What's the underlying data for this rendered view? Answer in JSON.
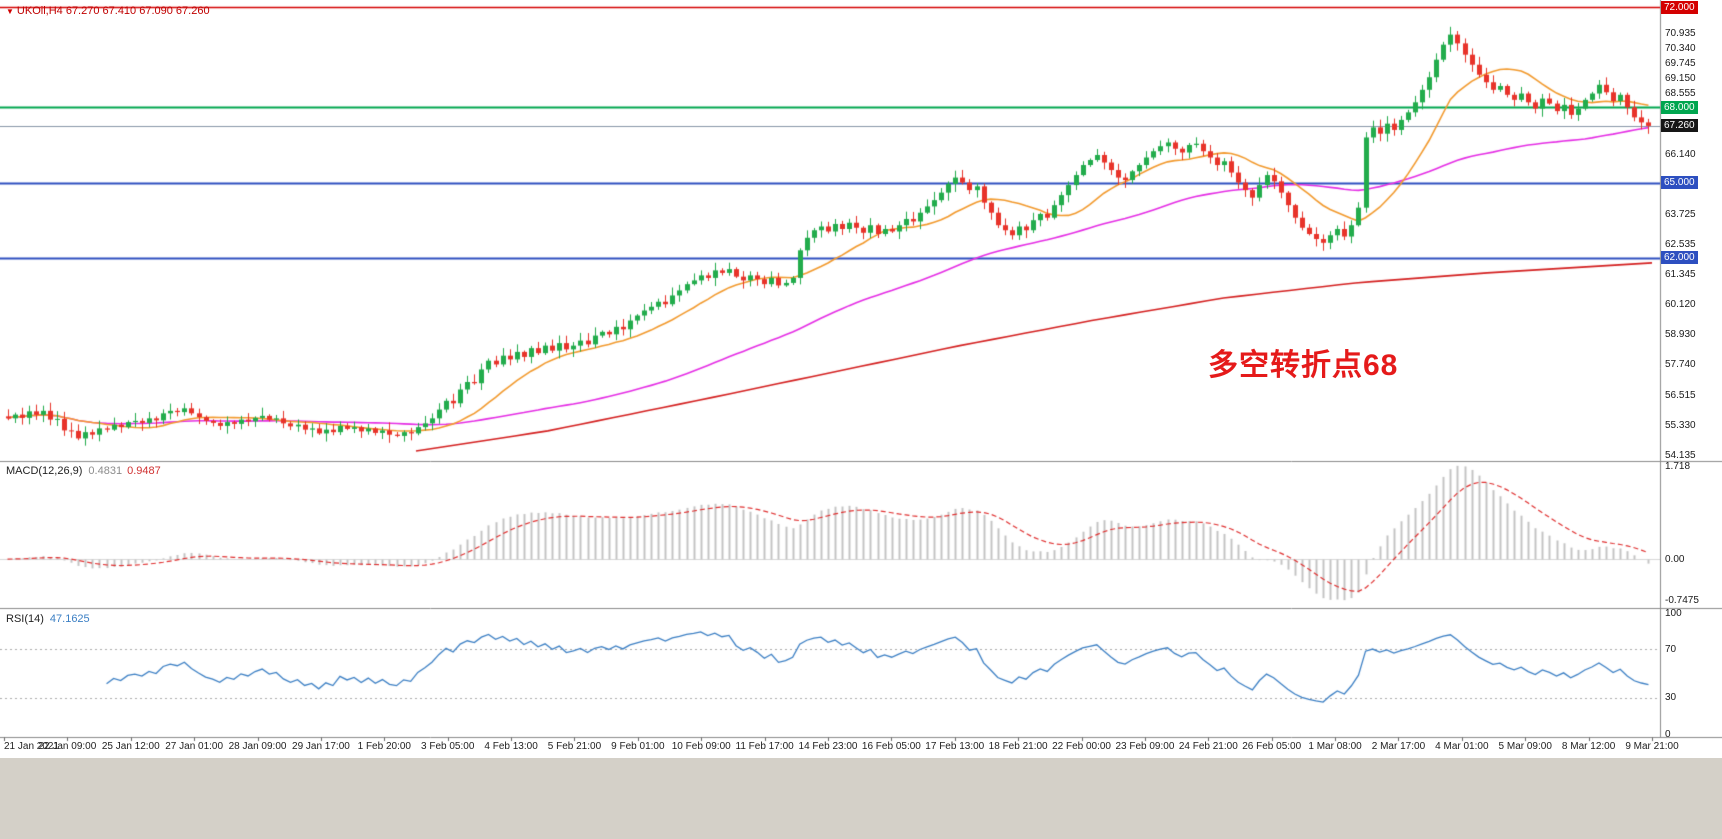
{
  "main_chart": {
    "marker": "▼",
    "title": "UKOil,H4 67.270 67.410 67.090 67.260",
    "annotation": "多空转折点68",
    "current_price": "67.260",
    "hlines": [
      {
        "price": 72.0,
        "color": "#d40000",
        "width": 1.5
      },
      {
        "price": 68.0,
        "color": "#00a64f",
        "width": 2
      },
      {
        "price": 67.26,
        "color": "#8896a8",
        "width": 1
      },
      {
        "price": 65.0,
        "color": "#2d4fc0",
        "width": 2
      },
      {
        "price": 62.0,
        "color": "#2d4fc0",
        "width": 2
      }
    ],
    "price_scale": [
      {
        "text": "72.000",
        "price": 72.0,
        "bg": "#d40000"
      },
      {
        "text": "70.935",
        "price": 70.935
      },
      {
        "text": "70.340",
        "price": 70.34
      },
      {
        "text": "69.745",
        "price": 69.745
      },
      {
        "text": "69.150",
        "price": 69.15
      },
      {
        "text": "68.555",
        "price": 68.555
      },
      {
        "text": "68.000",
        "price": 68.0,
        "bg": "#00a64f"
      },
      {
        "text": "67.260",
        "price": 67.26,
        "bg": "#161616"
      },
      {
        "text": "66.140",
        "price": 66.14
      },
      {
        "text": "65.000",
        "price": 65.0,
        "bg": "#2d4fc0"
      },
      {
        "text": "63.725",
        "price": 63.725
      },
      {
        "text": "62.535",
        "price": 62.535
      },
      {
        "text": "62.000",
        "price": 62.0,
        "bg": "#2d4fc0"
      },
      {
        "text": "61.345",
        "price": 61.345
      },
      {
        "text": "60.120",
        "price": 60.12
      },
      {
        "text": "58.930",
        "price": 58.93
      },
      {
        "text": "57.740",
        "price": 57.74
      },
      {
        "text": "56.515",
        "price": 56.515
      },
      {
        "text": "55.330",
        "price": 55.33
      },
      {
        "text": "54.135",
        "price": 54.135
      }
    ]
  },
  "macd": {
    "label": "MACD(12,26,9)",
    "value_main": "0.4831",
    "value_signal": "0.9487",
    "scale": {
      "top": "1.718",
      "zero": "0.00",
      "bottom": "-0.7475"
    }
  },
  "rsi": {
    "label": "RSI(14)",
    "value": "47.1625",
    "scale": [
      {
        "text": "100",
        "value": 100
      },
      {
        "text": "70",
        "value": 70
      },
      {
        "text": "30",
        "value": 30
      },
      {
        "text": "0",
        "value": 0
      }
    ],
    "levels": [
      70,
      30
    ]
  },
  "chart_data": {
    "type": "candlestick",
    "symbol": "UKOil",
    "timeframe": "H4",
    "ohlc_last": {
      "open": 67.27,
      "high": 67.41,
      "low": 67.09,
      "close": 67.26
    },
    "price_range": [
      54.135,
      72.0
    ],
    "x_labels": [
      "21 Jan 2021",
      "22 Jan 09:00",
      "25 Jan 12:00",
      "27 Jan 01:00",
      "28 Jan 09:00",
      "29 Jan 17:00",
      "1 Feb 20:00",
      "3 Feb 05:00",
      "4 Feb 13:00",
      "5 Feb 21:00",
      "9 Feb 01:00",
      "10 Feb 09:00",
      "11 Feb 17:00",
      "14 Feb 23:00",
      "16 Feb 05:00",
      "17 Feb 13:00",
      "18 Feb 21:00",
      "22 Feb 00:00",
      "23 Feb 09:00",
      "24 Feb 21:00",
      "26 Feb 05:00",
      "1 Mar 08:00",
      "2 Mar 17:00",
      "4 Mar 01:00",
      "5 Mar 09:00",
      "8 Mar 12:00",
      "9 Mar 21:00"
    ],
    "closes": [
      55.6,
      55.75,
      55.62,
      55.88,
      55.74,
      55.9,
      55.55,
      55.58,
      55.12,
      55.1,
      54.8,
      55.05,
      54.95,
      55.2,
      55.15,
      55.35,
      55.25,
      55.45,
      55.5,
      55.42,
      55.6,
      55.52,
      55.8,
      55.9,
      55.85,
      56.0,
      55.8,
      55.65,
      55.5,
      55.42,
      55.3,
      55.45,
      55.38,
      55.55,
      55.48,
      55.62,
      55.7,
      55.55,
      55.6,
      55.4,
      55.28,
      55.35,
      55.15,
      55.2,
      55.0,
      55.15,
      55.05,
      55.3,
      55.18,
      55.25,
      55.08,
      55.2,
      55.02,
      55.12,
      54.95,
      54.9,
      55.05,
      55.0,
      55.25,
      55.4,
      55.6,
      55.95,
      56.3,
      56.2,
      56.75,
      57.05,
      57.0,
      57.55,
      57.9,
      57.75,
      58.1,
      57.95,
      58.25,
      58.05,
      58.4,
      58.2,
      58.5,
      58.3,
      58.6,
      58.35,
      58.5,
      58.7,
      58.55,
      58.9,
      59.05,
      58.95,
      59.25,
      59.15,
      59.5,
      59.7,
      59.9,
      60.05,
      60.25,
      60.15,
      60.5,
      60.7,
      60.95,
      61.1,
      61.3,
      61.2,
      61.5,
      61.4,
      61.55,
      61.25,
      61.1,
      61.3,
      61.15,
      60.95,
      61.2,
      60.9,
      61.0,
      61.2,
      62.3,
      62.8,
      63.1,
      63.25,
      63.05,
      63.35,
      63.15,
      63.4,
      63.2,
      63.0,
      63.3,
      62.95,
      63.15,
      63.05,
      63.3,
      63.55,
      63.45,
      63.8,
      64.05,
      64.3,
      64.6,
      64.95,
      65.2,
      65.0,
      64.7,
      64.85,
      64.2,
      63.8,
      63.3,
      63.1,
      62.9,
      63.25,
      63.1,
      63.5,
      63.75,
      63.6,
      64.1,
      64.5,
      64.9,
      65.3,
      65.7,
      65.9,
      66.1,
      65.8,
      65.5,
      65.2,
      65.1,
      65.45,
      65.7,
      66.0,
      66.25,
      66.45,
      66.6,
      66.35,
      66.2,
      66.5,
      66.55,
      66.25,
      66.0,
      65.7,
      65.85,
      65.4,
      65.0,
      64.7,
      64.4,
      64.9,
      65.3,
      65.05,
      64.6,
      64.1,
      63.6,
      63.2,
      62.95,
      62.75,
      62.6,
      62.9,
      63.15,
      62.85,
      63.3,
      64.0,
      66.8,
      67.2,
      66.95,
      67.35,
      67.1,
      67.5,
      67.8,
      68.2,
      68.7,
      69.2,
      69.9,
      70.5,
      70.9,
      70.55,
      70.1,
      69.7,
      69.3,
      69.0,
      68.7,
      68.85,
      68.5,
      68.3,
      68.55,
      68.2,
      67.95,
      68.35,
      68.15,
      67.85,
      68.1,
      67.7,
      67.95,
      68.3,
      68.55,
      68.9,
      68.6,
      68.25,
      68.5,
      68.0,
      67.6,
      67.4,
      67.26
    ],
    "moving_averages": {
      "fast_period": 13,
      "fast_color": "#f29a2e",
      "mid_period": 55,
      "mid_color": "#e52ee5",
      "slow_color": "#d42020",
      "slow_points": [
        [
          0.25,
          54.3
        ],
        [
          0.33,
          55.1
        ],
        [
          0.42,
          56.3
        ],
        [
          0.5,
          57.4
        ],
        [
          0.58,
          58.5
        ],
        [
          0.66,
          59.5
        ],
        [
          0.74,
          60.4
        ],
        [
          0.82,
          61.0
        ],
        [
          0.9,
          61.4
        ],
        [
          1.0,
          61.8
        ]
      ]
    },
    "indicators": {
      "macd": {
        "fast": 12,
        "slow": 26,
        "signal": 9
      },
      "rsi": {
        "period": 14
      }
    },
    "colors": {
      "up": "#22ac4c",
      "down": "#e8332a",
      "macd_hist": "#c4c4c4",
      "macd_signal": "#e03030",
      "rsi_line": "#3b7fc4"
    }
  }
}
